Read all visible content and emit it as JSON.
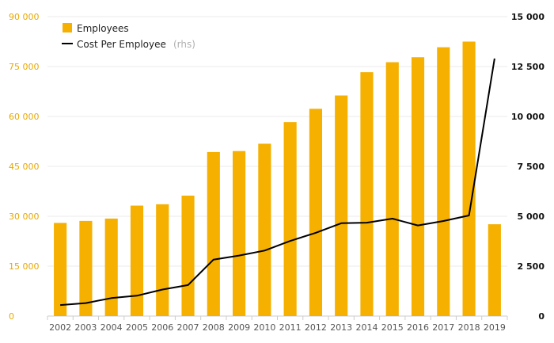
{
  "chart_data": {
    "type": "bar",
    "title": "",
    "xlabel": "",
    "ylabel": "",
    "categories": [
      "2002",
      "2003",
      "2004",
      "2005",
      "2006",
      "2007",
      "2008",
      "2009",
      "2010",
      "2011",
      "2012",
      "2013",
      "2014",
      "2015",
      "2016",
      "2017",
      "2018",
      "2019"
    ],
    "series": [
      {
        "name": "Employees",
        "type": "bar",
        "axis": "left",
        "color": "#f5b000",
        "values": [
          28000,
          28600,
          29300,
          33200,
          33600,
          36200,
          49300,
          49600,
          51800,
          58300,
          62300,
          66300,
          73300,
          76300,
          77800,
          80800,
          82500,
          27600
        ]
      },
      {
        "name": "Cost Per Employee",
        "name_suffix": "(rhs)",
        "type": "line",
        "axis": "right",
        "color": "#000000",
        "values": [
          550,
          650,
          900,
          1020,
          1330,
          1550,
          2830,
          3030,
          3280,
          3760,
          4170,
          4650,
          4680,
          4880,
          4540,
          4760,
          5040,
          12900
        ]
      }
    ],
    "y_left": {
      "min": 0,
      "max": 90000,
      "ticks": [
        "0",
        "15 000",
        "30 000",
        "45 000",
        "60 000",
        "75 000",
        "90 000"
      ],
      "color": "#e8a800"
    },
    "y_right": {
      "min": 0,
      "max": 15000,
      "ticks": [
        "0",
        "2 500",
        "5 000",
        "7 500",
        "10 000",
        "12 500",
        "15 000"
      ],
      "color": "#111111"
    },
    "grid": true,
    "legend": "top-left"
  }
}
